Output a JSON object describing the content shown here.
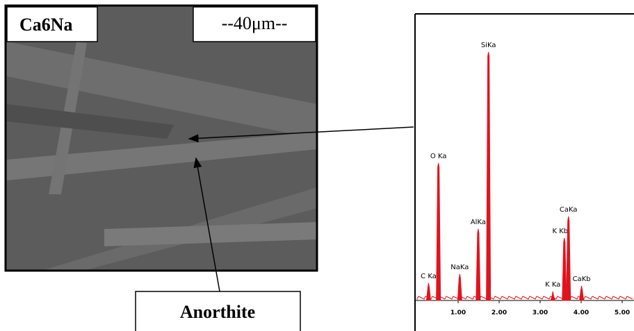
{
  "image": {
    "label": "Ca6Na",
    "scale": "--40μm--"
  },
  "callout": "Anorthite",
  "chart_data": {
    "type": "spectrum",
    "x": [
      0.28,
      0.52,
      1.04,
      1.49,
      1.74,
      3.31,
      3.59,
      3.69,
      4.01
    ],
    "values": [
      25,
      198,
      38,
      103,
      358,
      13,
      90,
      121,
      21
    ],
    "peak_labels": [
      "C Ka",
      "O Ka",
      "NaKa",
      "AlKa",
      "SiKa",
      "K Ka",
      "K Kb",
      "CaKa",
      "CaKb"
    ],
    "color": "#e0141e",
    "xlim": [
      0,
      5.25
    ],
    "xticks": [
      {
        "value": 1,
        "label": "1.00"
      },
      {
        "value": 2,
        "label": "2.00"
      },
      {
        "value": 3,
        "label": "3.00"
      },
      {
        "value": 4,
        "label": "4.00"
      },
      {
        "value": 5,
        "label": "5.00"
      }
    ],
    "ylim": [
      0,
      380
    ]
  }
}
